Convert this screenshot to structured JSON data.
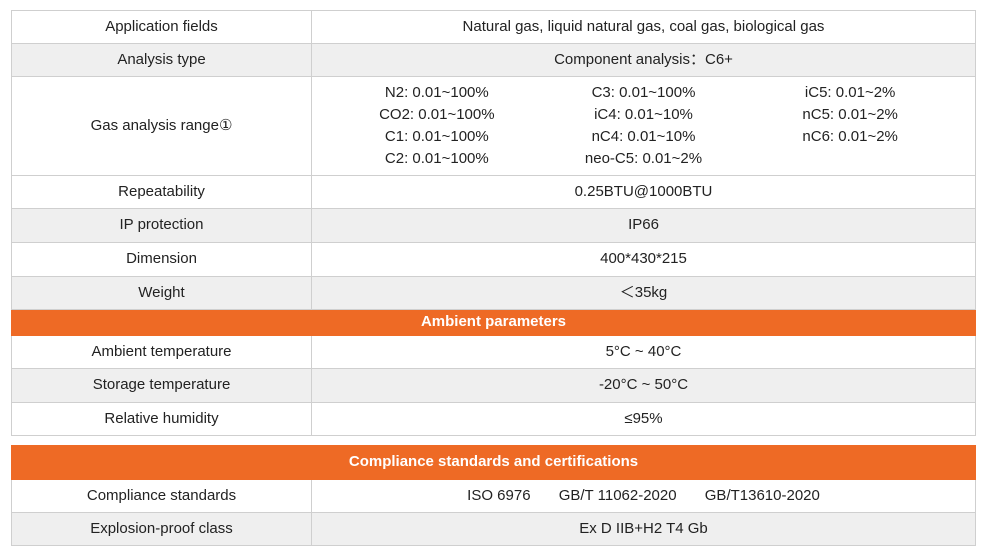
{
  "section1": {
    "rows": [
      {
        "label": "Application fields",
        "value": "Natural gas, liquid natural gas, coal gas, biological gas"
      },
      {
        "label": "Analysis type",
        "value": "Component analysis：C6+"
      },
      {
        "label": "Gas analysis range①"
      },
      {
        "label": "Repeatability",
        "value": "0.25BTU@1000BTU"
      },
      {
        "label": "IP protection",
        "value": "IP66"
      },
      {
        "label": "Dimension",
        "value": "400*430*215"
      },
      {
        "label": "Weight",
        "value": "＜35kg"
      }
    ],
    "gas_ranges": {
      "col1": [
        "N2: 0.01~100%",
        "CO2: 0.01~100%",
        "C1: 0.01~100%",
        "C2: 0.01~100%"
      ],
      "col2": [
        "C3: 0.01~100%",
        "iC4: 0.01~10%",
        "nC4: 0.01~10%",
        "neo-C5: 0.01~2%"
      ],
      "col3": [
        "iC5: 0.01~2%",
        "nC5: 0.01~2%",
        "nC6: 0.01~2%"
      ]
    }
  },
  "ambient": {
    "header": "Ambient parameters",
    "rows": [
      {
        "label": "Ambient temperature",
        "value": "5°C ~ 40°C"
      },
      {
        "label": "Storage temperature",
        "value": "-20°C ~ 50°C"
      },
      {
        "label": "Relative humidity",
        "value": "≤95%"
      }
    ]
  },
  "compliance": {
    "header": "Compliance standards and certifications",
    "rows": [
      {
        "label": "Compliance standards",
        "standards": [
          "ISO 6976",
          "GB/T 11062-2020",
          "GB/T13610-2020"
        ]
      },
      {
        "label": "Explosion-proof class",
        "value": "Ex D IIB+H2 T4 Gb"
      }
    ]
  },
  "colors": {
    "header_bg": "#ee6a25",
    "row_alt": "#efefef",
    "border": "#cfcfcf"
  }
}
